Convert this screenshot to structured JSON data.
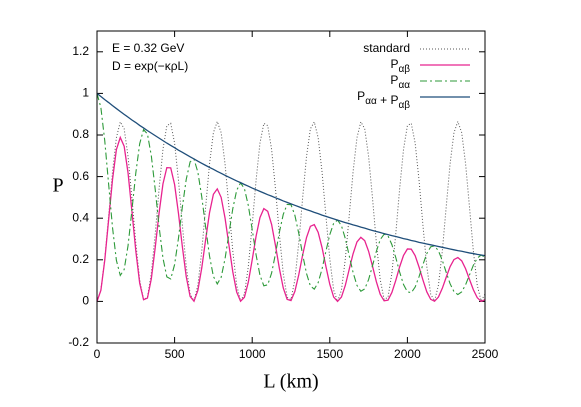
{
  "chart_data": {
    "type": "line",
    "xlabel": "L (km)",
    "ylabel": "P",
    "annotations": [
      "E = 0.32 GeV",
      "D = exp(−κρL)"
    ],
    "xlim": [
      0,
      2500
    ],
    "ylim": [
      -0.2,
      1.3
    ],
    "xticks": [
      0,
      500,
      1000,
      1500,
      2000,
      2500
    ],
    "yticks": [
      -0.2,
      0,
      0.2,
      0.4,
      0.6,
      0.8,
      1,
      1.2
    ],
    "legend": "upper right",
    "x": [
      0,
      25,
      50,
      75,
      100,
      125,
      150,
      175,
      200,
      225,
      250,
      275,
      300,
      325,
      350,
      375,
      400,
      425,
      450,
      475,
      500,
      525,
      550,
      575,
      600,
      625,
      650,
      675,
      700,
      725,
      750,
      775,
      800,
      825,
      850,
      875,
      900,
      925,
      950,
      975,
      1000,
      1025,
      1050,
      1075,
      1100,
      1125,
      1150,
      1175,
      1200,
      1225,
      1250,
      1275,
      1300,
      1325,
      1350,
      1375,
      1400,
      1425,
      1450,
      1475,
      1500,
      1525,
      1550,
      1575,
      1600,
      1625,
      1650,
      1675,
      1700,
      1725,
      1750,
      1775,
      1800,
      1825,
      1850,
      1875,
      1900,
      1925,
      1950,
      1975,
      2000,
      2025,
      2050,
      2075,
      2100,
      2125,
      2150,
      2175,
      2200,
      2225,
      2250,
      2275,
      2300,
      2325,
      2350,
      2375,
      2400,
      2425,
      2450,
      2475,
      2500
    ],
    "series": [
      {
        "name": "standard",
        "color": "#555555",
        "width": 1,
        "dash": "1 2",
        "values": [
          0,
          0.054,
          0.204,
          0.411,
          0.623,
          0.787,
          0.863,
          0.83,
          0.697,
          0.498,
          0.282,
          0.104,
          0.009,
          0.02,
          0.135,
          0.324,
          0.541,
          0.731,
          0.845,
          0.856,
          0.761,
          0.582,
          0.367,
          0.168,
          0.035,
          0.002,
          0.078,
          0.242,
          0.454,
          0.661,
          0.811,
          0.865,
          0.811,
          0.661,
          0.454,
          0.242,
          0.078,
          0.002,
          0.035,
          0.168,
          0.367,
          0.582,
          0.761,
          0.856,
          0.845,
          0.731,
          0.541,
          0.324,
          0.135,
          0.02,
          0.009,
          0.104,
          0.282,
          0.498,
          0.697,
          0.83,
          0.863,
          0.787,
          0.623,
          0.411,
          0.204,
          0.054,
          0,
          0.054,
          0.204,
          0.411,
          0.623,
          0.787,
          0.863,
          0.83,
          0.697,
          0.498,
          0.282,
          0.104,
          0.009,
          0.02,
          0.135,
          0.324,
          0.541,
          0.731,
          0.845,
          0.856,
          0.761,
          0.582,
          0.367,
          0.168,
          0.035,
          0.002,
          0.078,
          0.242,
          0.454,
          0.661,
          0.811,
          0.865,
          0.811,
          0.661,
          0.454,
          0.242,
          0.078,
          0.002,
          0.035
        ]
      },
      {
        "name": "Pαβ",
        "color": "#e8238f",
        "width": 1.3,
        "dash": "none",
        "values": [
          0,
          0.053,
          0.198,
          0.393,
          0.586,
          0.73,
          0.788,
          0.746,
          0.618,
          0.434,
          0.243,
          0.088,
          0.008,
          0.016,
          0.109,
          0.258,
          0.425,
          0.565,
          0.643,
          0.642,
          0.562,
          0.423,
          0.263,
          0.119,
          0.024,
          0.001,
          0.053,
          0.161,
          0.297,
          0.426,
          0.515,
          0.541,
          0.5,
          0.401,
          0.271,
          0.142,
          0.045,
          0.001,
          0.02,
          0.093,
          0.2,
          0.313,
          0.403,
          0.446,
          0.433,
          0.37,
          0.269,
          0.159,
          0.065,
          0.01,
          0.004,
          0.048,
          0.128,
          0.223,
          0.307,
          0.361,
          0.369,
          0.332,
          0.259,
          0.168,
          0.082,
          0.021,
          0,
          0.021,
          0.077,
          0.154,
          0.229,
          0.286,
          0.308,
          0.292,
          0.241,
          0.17,
          0.095,
          0.034,
          0.003,
          0.006,
          0.043,
          0.101,
          0.166,
          0.221,
          0.252,
          0.251,
          0.22,
          0.165,
          0.103,
          0.046,
          0.01,
          0.001,
          0.021,
          0.063,
          0.116,
          0.167,
          0.201,
          0.211,
          0.195,
          0.157,
          0.106,
          0.056,
          0.018,
          0,
          0.008
        ]
      },
      {
        "name": "Pαα",
        "color": "#2e9a3a",
        "width": 1.1,
        "dash": "7 3 2 3",
        "values": [
          1,
          0.932,
          0.772,
          0.563,
          0.355,
          0.197,
          0.125,
          0.153,
          0.268,
          0.438,
          0.617,
          0.758,
          0.826,
          0.805,
          0.7,
          0.539,
          0.36,
          0.208,
          0.118,
          0.108,
          0.177,
          0.304,
          0.454,
          0.587,
          0.671,
          0.684,
          0.621,
          0.503,
          0.357,
          0.218,
          0.12,
          0.084,
          0.116,
          0.205,
          0.326,
          0.446,
          0.534,
          0.57,
          0.542,
          0.461,
          0.345,
          0.224,
          0.126,
          0.075,
          0.08,
          0.136,
          0.229,
          0.332,
          0.418,
          0.466,
          0.465,
          0.414,
          0.327,
          0.225,
          0.134,
          0.074,
          0.059,
          0.09,
          0.156,
          0.241,
          0.321,
          0.376,
          0.391,
          0.364,
          0.302,
          0.22,
          0.139,
          0.077,
          0.049,
          0.06,
          0.105,
          0.171,
          0.241,
          0.297,
          0.323,
          0.315,
          0.273,
          0.211,
          0.141,
          0.081,
          0.046,
          0.042,
          0.069,
          0.119,
          0.177,
          0.23,
          0.262,
          0.267,
          0.243,
          0.197,
          0.14,
          0.085,
          0.047,
          0.033,
          0.046,
          0.08,
          0.127,
          0.174,
          0.208,
          0.223,
          0.212
        ]
      },
      {
        "name": "Pαα + Pαβ",
        "color": "#1f4e7a",
        "width": 1.3,
        "dash": "none",
        "values": [
          1,
          0.985,
          0.97,
          0.956,
          0.941,
          0.927,
          0.913,
          0.899,
          0.886,
          0.872,
          0.86,
          0.846,
          0.834,
          0.821,
          0.809,
          0.797,
          0.785,
          0.773,
          0.761,
          0.75,
          0.739,
          0.727,
          0.717,
          0.706,
          0.695,
          0.685,
          0.674,
          0.664,
          0.654,
          0.644,
          0.635,
          0.625,
          0.616,
          0.606,
          0.597,
          0.588,
          0.579,
          0.571,
          0.562,
          0.554,
          0.545,
          0.537,
          0.529,
          0.521,
          0.513,
          0.506,
          0.498,
          0.491,
          0.483,
          0.476,
          0.469,
          0.462,
          0.455,
          0.448,
          0.441,
          0.435,
          0.428,
          0.422,
          0.415,
          0.409,
          0.403,
          0.397,
          0.391,
          0.385,
          0.379,
          0.374,
          0.368,
          0.363,
          0.357,
          0.352,
          0.346,
          0.341,
          0.336,
          0.331,
          0.326,
          0.321,
          0.316,
          0.312,
          0.307,
          0.302,
          0.298,
          0.293,
          0.289,
          0.284,
          0.28,
          0.276,
          0.272,
          0.268,
          0.264,
          0.26,
          0.256,
          0.252,
          0.248,
          0.244,
          0.241,
          0.237,
          0.233,
          0.23,
          0.226,
          0.223,
          0.22
        ]
      }
    ]
  }
}
